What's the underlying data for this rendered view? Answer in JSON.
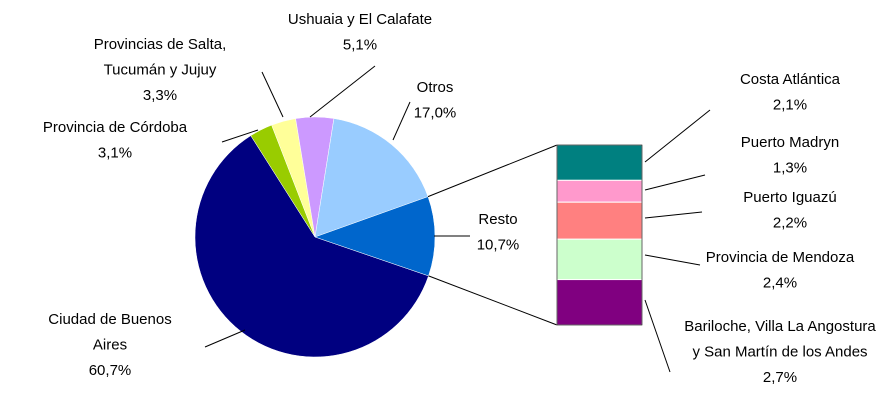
{
  "chart_data": {
    "type": "pie",
    "categories": [
      "Ciudad de Buenos Aires",
      "Provincia de Córdoba",
      "Provincias de Salta, Tucumán y Jujuy",
      "Ushuaia y El Calafate",
      "Otros",
      "Resto"
    ],
    "values": [
      60.7,
      3.1,
      3.3,
      5.1,
      17.0,
      10.7
    ],
    "value_labels": [
      "60,7%",
      "3,1%",
      "3,3%",
      "5,1%",
      "17,0%",
      "10,7%"
    ],
    "colors": [
      "#000080",
      "#99cc00",
      "#ffff99",
      "#cc99ff",
      "#99ccff",
      "#0066cc"
    ],
    "bar": {
      "categories": [
        "Costa Atlántica",
        "Puerto Madryn",
        "Puerto Iguazú",
        "Provincia de Mendoza",
        "Bariloche, Villa La Angostura y San Martín de los Andes"
      ],
      "values": [
        2.1,
        1.3,
        2.2,
        2.4,
        2.7
      ],
      "value_labels": [
        "2,1%",
        "1,3%",
        "2,2%",
        "2,4%",
        "2,7%"
      ],
      "colors": [
        "#008080",
        "#ff99cc",
        "#ff8080",
        "#ccffcc",
        "#800080"
      ]
    }
  }
}
